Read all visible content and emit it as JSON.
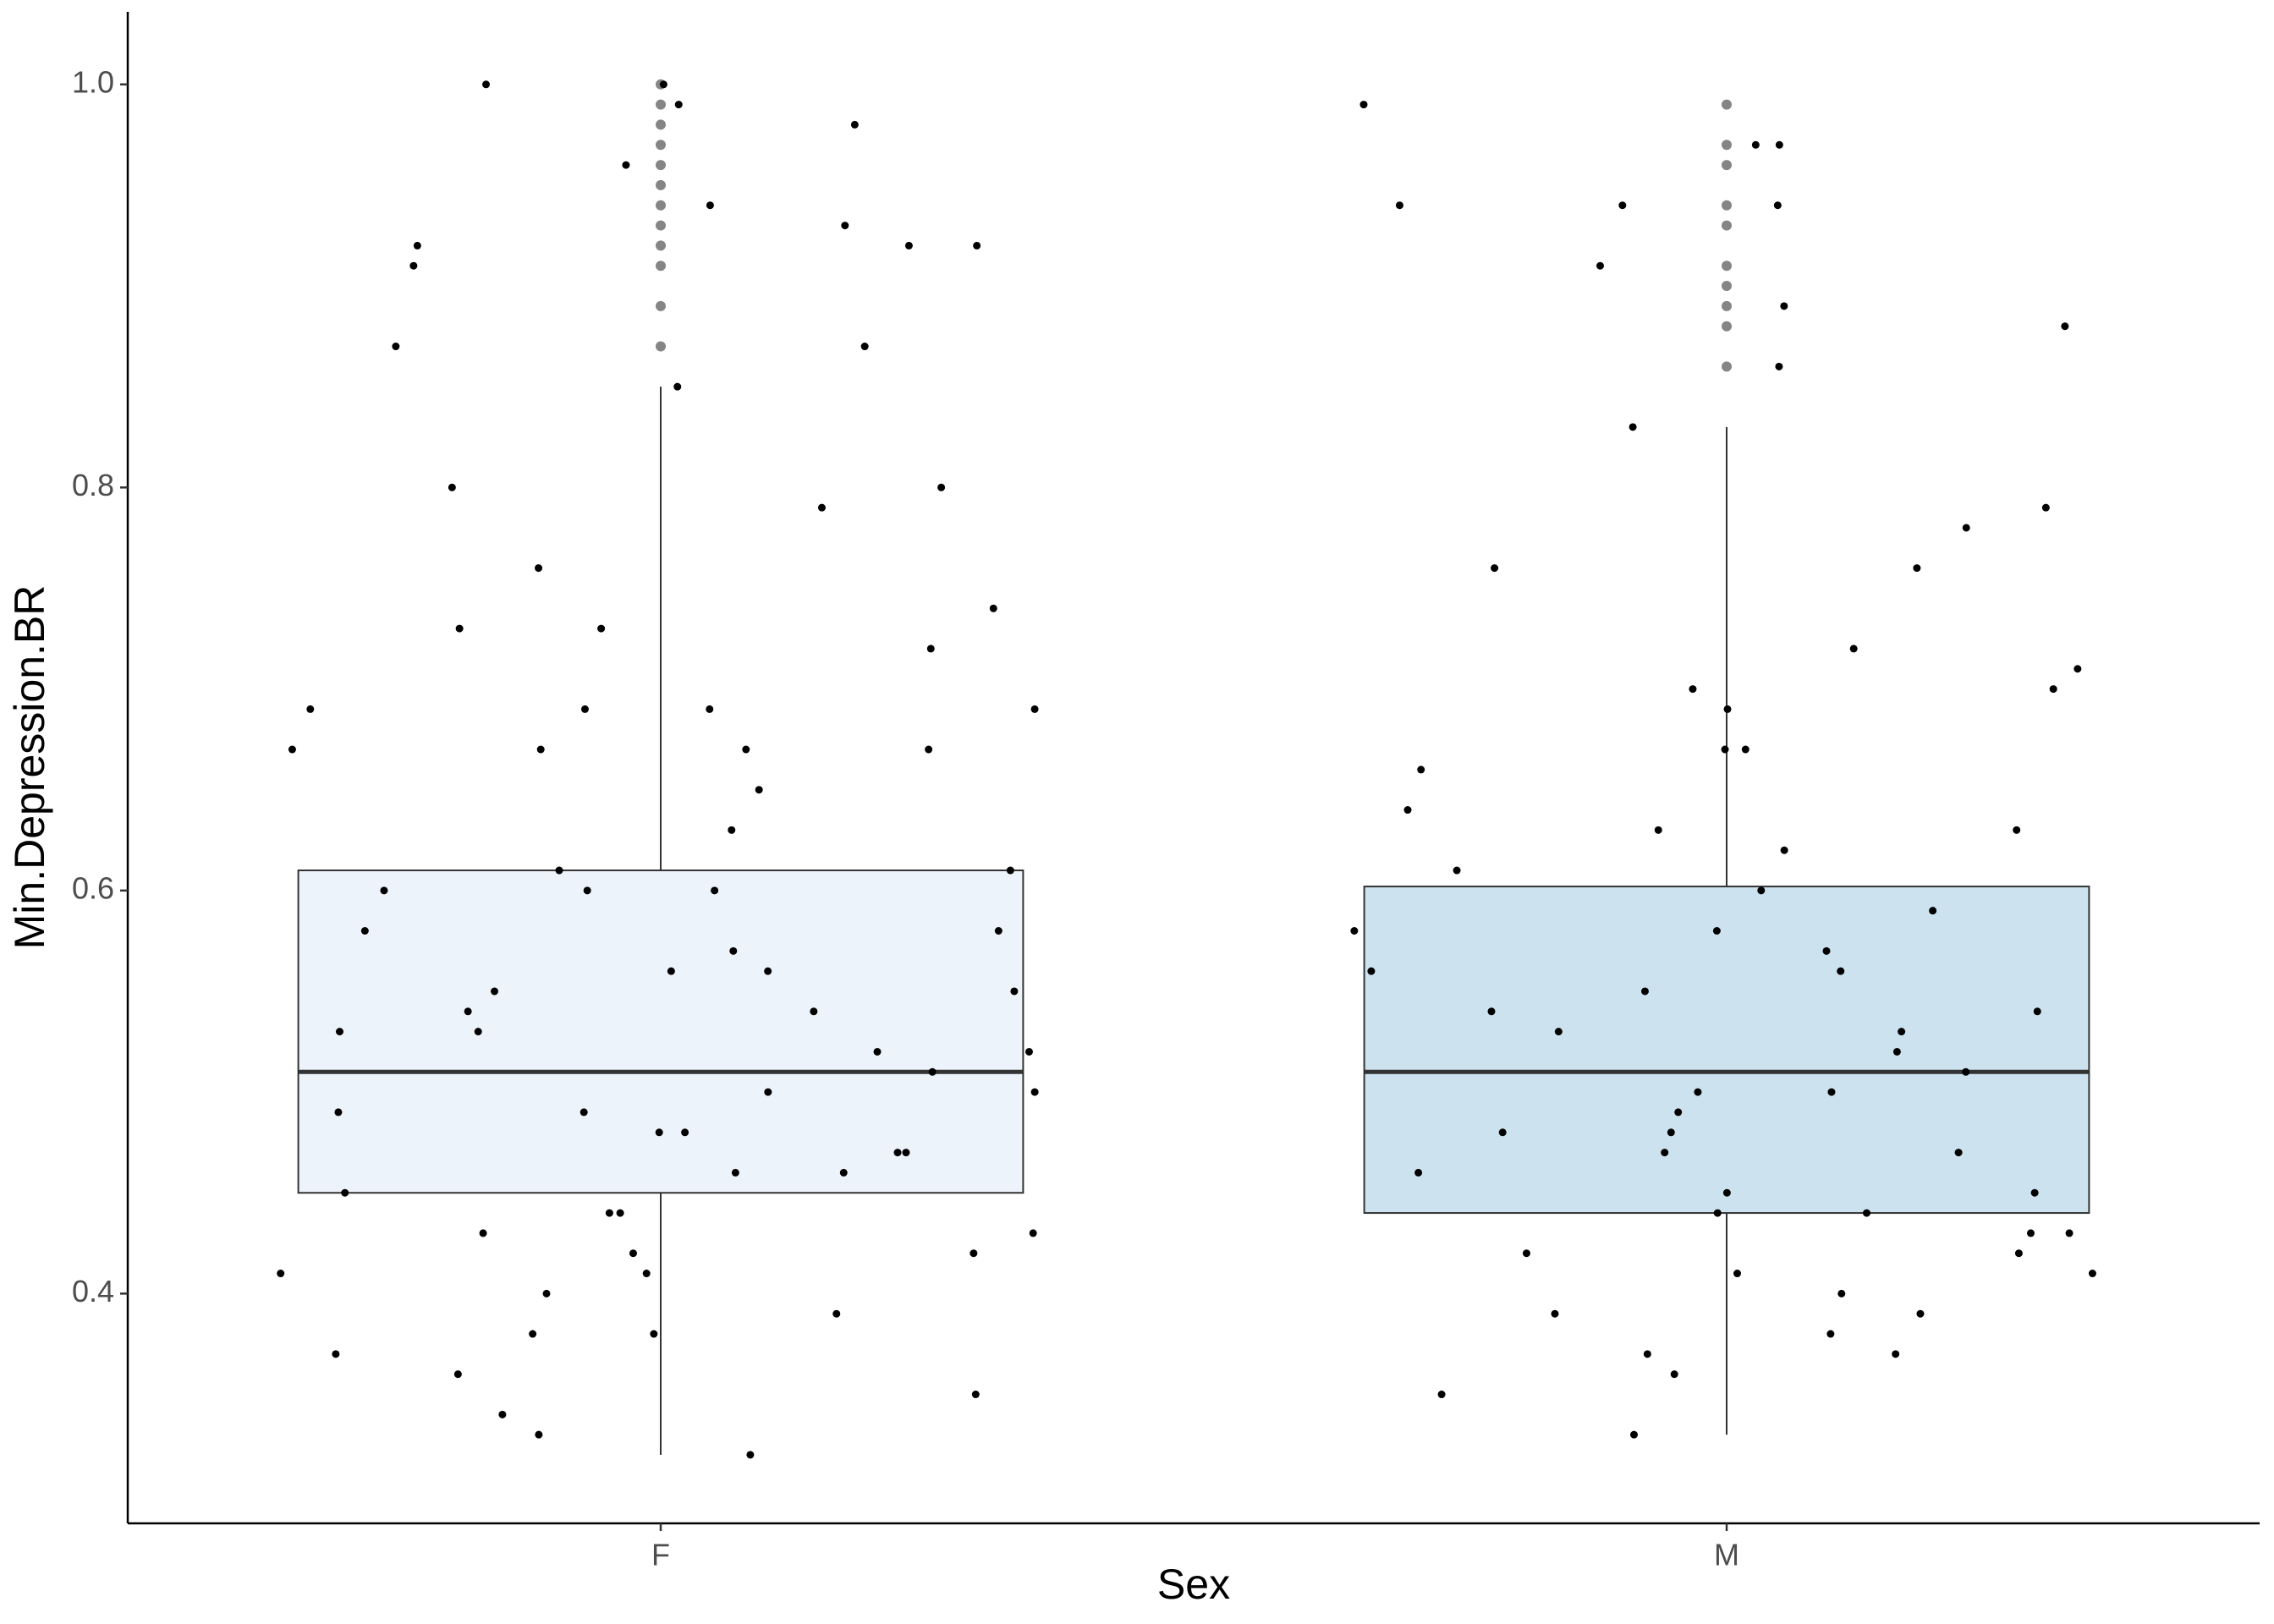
{
  "chart_data": {
    "type": "box",
    "x_label": "Sex",
    "y_label": "Min.Depression.BR",
    "categories": [
      "F",
      "M"
    ],
    "ylim": [
      0.286,
      1.036
    ],
    "yticks": [
      0.4,
      0.6,
      0.8,
      {
        "value": 1,
        "label": "1.0"
      }
    ],
    "boxes": [
      {
        "color": "#edf3fb",
        "whisker_low": 0.32,
        "q1": 0.45,
        "median": 0.51,
        "q3": 0.61,
        "whisker_high": 0.85,
        "outliers": [
          1.0,
          0.99,
          0.98,
          0.97,
          0.96,
          0.95,
          0.94,
          0.93,
          0.92,
          0.91,
          0.89,
          0.87
        ],
        "points": [
          0.92,
          0.93,
          0.94,
          0.96,
          1.0,
          0.92,
          0.98,
          1.0,
          0.99,
          0.85,
          0.67,
          0.63,
          0.67,
          0.69,
          0.67,
          0.76,
          0.73,
          0.73,
          0.69,
          0.79,
          0.8,
          0.72,
          0.69,
          0.65,
          0.74,
          0.8,
          0.87,
          0.87,
          0.92,
          0.91,
          0.67,
          0.69,
          0.61,
          0.6,
          0.6,
          0.58,
          0.56,
          0.55,
          0.54,
          0.53,
          0.52,
          0.51,
          0.5,
          0.49,
          0.48,
          0.47,
          0.46,
          0.45,
          0.44,
          0.43,
          0.42,
          0.41,
          0.4,
          0.38,
          0.37,
          0.35,
          0.34,
          0.33,
          0.32,
          0.57,
          0.56,
          0.55,
          0.58,
          0.61,
          0.6,
          0.54,
          0.53,
          0.5,
          0.48,
          0.49,
          0.46,
          0.44,
          0.42,
          0.41,
          0.39,
          0.38,
          0.36,
          0.47,
          0.52,
          0.43
        ]
      },
      {
        "color": "#cce3ef",
        "whisker_low": 0.33,
        "q1": 0.44,
        "median": 0.51,
        "q3": 0.602,
        "whisker_high": 0.83,
        "outliers": [
          0.99,
          0.97,
          0.96,
          0.94,
          0.93,
          0.91,
          0.9,
          0.89,
          0.88,
          0.86
        ],
        "points": [
          0.99,
          0.94,
          0.94,
          0.91,
          0.88,
          0.97,
          0.97,
          0.94,
          0.89,
          0.86,
          0.83,
          0.79,
          0.78,
          0.76,
          0.76,
          0.72,
          0.71,
          0.7,
          0.7,
          0.69,
          0.67,
          0.67,
          0.66,
          0.64,
          0.63,
          0.63,
          0.62,
          0.61,
          0.6,
          0.59,
          0.58,
          0.57,
          0.56,
          0.55,
          0.54,
          0.53,
          0.52,
          0.51,
          0.5,
          0.49,
          0.48,
          0.47,
          0.46,
          0.45,
          0.44,
          0.43,
          0.42,
          0.41,
          0.4,
          0.39,
          0.38,
          0.37,
          0.36,
          0.35,
          0.33,
          0.56,
          0.54,
          0.5,
          0.48,
          0.45,
          0.43,
          0.42,
          0.58,
          0.53,
          0.47,
          0.44,
          0.41,
          0.39,
          0.37
        ]
      }
    ]
  }
}
